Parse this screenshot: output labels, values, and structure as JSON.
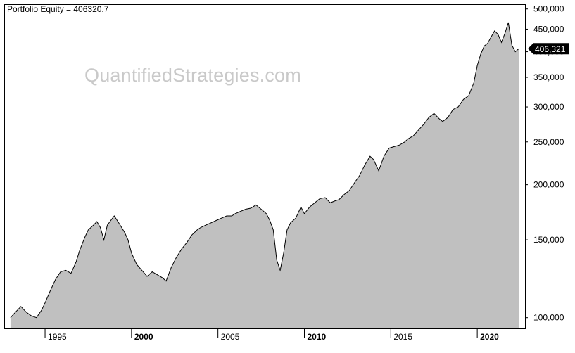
{
  "title": "Portfolio Equity = 406320.7",
  "watermark": "QuantifiedStrategies.com",
  "colors": {
    "area_fill": "#c0c0c0",
    "line": "#000000",
    "axis": "#000000",
    "label_bg": "#000000",
    "label_text": "#ffffff",
    "watermark": "#c9c9c9"
  },
  "chart_data": {
    "type": "area",
    "title": "Portfolio Equity = 406320.7",
    "y_scale": "log",
    "ylim": [
      97000,
      505000
    ],
    "xlim": [
      1992.8,
      2022.6
    ],
    "grid": false,
    "legend": "none",
    "y_ticks": [
      {
        "value": 100000,
        "label": "100,000"
      },
      {
        "value": 150000,
        "label": "150,000"
      },
      {
        "value": 200000,
        "label": "200,000"
      },
      {
        "value": 250000,
        "label": "250,000"
      },
      {
        "value": 300000,
        "label": "300,000"
      },
      {
        "value": 350000,
        "label": "350,000"
      },
      {
        "value": 400000,
        "label": "400,000"
      },
      {
        "value": 450000,
        "label": "450,000"
      },
      {
        "value": 500000,
        "label": "500,000"
      }
    ],
    "x_ticks": [
      {
        "value": 1995,
        "label": "1995",
        "bold": false
      },
      {
        "value": 2000,
        "label": "2000",
        "bold": true
      },
      {
        "value": 2005,
        "label": "2005",
        "bold": false
      },
      {
        "value": 2010,
        "label": "2010",
        "bold": true
      },
      {
        "value": 2015,
        "label": "2015",
        "bold": false
      },
      {
        "value": 2020,
        "label": "2020",
        "bold": true
      }
    ],
    "last_value_label": "406,321",
    "last_value": 406321,
    "series": [
      {
        "x": [
          1993.0,
          1993.3,
          1993.6,
          1993.9,
          1994.2,
          1994.5,
          1994.8,
          1995.0,
          1995.3,
          1995.6,
          1995.9,
          1996.2,
          1996.5,
          1996.8,
          1997.0,
          1997.3,
          1997.5,
          1997.8,
          1998.0,
          1998.2,
          1998.4,
          1998.6,
          1998.8,
          1999.0,
          1999.3,
          1999.6,
          1999.8,
          2000.0,
          2000.3,
          2000.6,
          2000.9,
          2001.2,
          2001.5,
          2001.8,
          2002.0,
          2002.3,
          2002.6,
          2002.9,
          2003.2,
          2003.5,
          2003.8,
          2004.0,
          2004.3,
          2004.6,
          2004.9,
          2005.2,
          2005.5,
          2005.8,
          2006.0,
          2006.3,
          2006.6,
          2006.9,
          2007.2,
          2007.5,
          2007.8,
          2008.0,
          2008.2,
          2008.4,
          2008.6,
          2008.8,
          2009.0,
          2009.2,
          2009.5,
          2009.8,
          2010.0,
          2010.3,
          2010.6,
          2010.9,
          2011.2,
          2011.5,
          2011.8,
          2012.0,
          2012.3,
          2012.6,
          2012.9,
          2013.2,
          2013.5,
          2013.8,
          2014.0,
          2014.3,
          2014.6,
          2014.9,
          2015.2,
          2015.5,
          2015.8,
          2016.0,
          2016.3,
          2016.6,
          2016.9,
          2017.2,
          2017.5,
          2017.8,
          2018.0,
          2018.3,
          2018.6,
          2018.9,
          2019.2,
          2019.5,
          2019.8,
          2020.0,
          2020.2,
          2020.4,
          2020.6,
          2020.8,
          2021.0,
          2021.2,
          2021.4,
          2021.6,
          2021.8,
          2022.0,
          2022.2,
          2022.4
        ],
        "values": [
          100000,
          103000,
          106000,
          103000,
          101000,
          100000,
          104000,
          108000,
          115000,
          122000,
          127000,
          128000,
          126000,
          134000,
          142000,
          152000,
          158000,
          162000,
          165000,
          160000,
          150000,
          162000,
          166000,
          170000,
          163000,
          156000,
          150000,
          140000,
          132000,
          128000,
          124000,
          127000,
          125000,
          123000,
          121000,
          130000,
          137000,
          143000,
          148000,
          154000,
          158000,
          160000,
          162000,
          164000,
          166000,
          168000,
          170000,
          170000,
          172000,
          174000,
          176000,
          177000,
          180000,
          176000,
          172000,
          166000,
          158000,
          135000,
          128000,
          140000,
          158000,
          164000,
          168000,
          178000,
          172000,
          178000,
          182000,
          186000,
          187000,
          182000,
          184000,
          185000,
          190000,
          194000,
          202000,
          210000,
          222000,
          232000,
          228000,
          215000,
          232000,
          242000,
          244000,
          246000,
          250000,
          254000,
          258000,
          266000,
          274000,
          284000,
          290000,
          282000,
          278000,
          284000,
          296000,
          300000,
          312000,
          318000,
          340000,
          372000,
          395000,
          412000,
          418000,
          432000,
          446000,
          438000,
          420000,
          440000,
          466000,
          414000,
          400000,
          406321
        ]
      }
    ]
  }
}
